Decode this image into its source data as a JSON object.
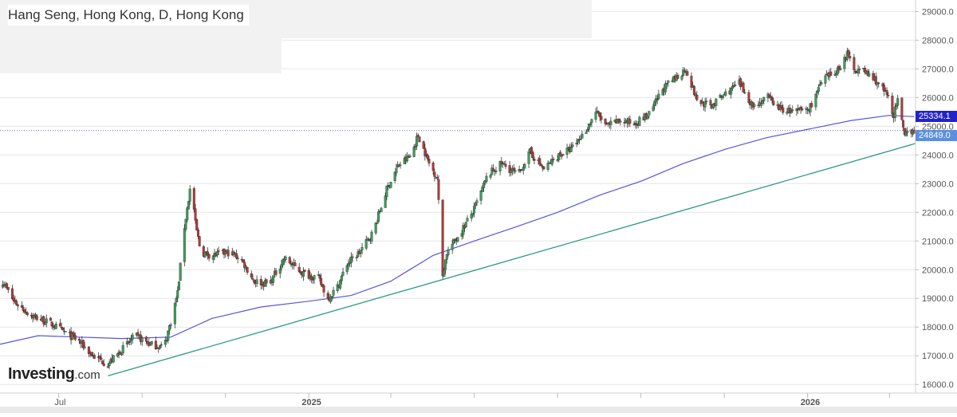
{
  "title": "Hang Seng, Hong Kong, D, Hong Kong",
  "logo": {
    "brand": "Investing",
    "suffix": ".com"
  },
  "price_labels": {
    "ma_value": "25334.1",
    "last_value": "24849.0"
  },
  "colors": {
    "up": "#3aa05a",
    "down": "#b83838",
    "moving_average": "#5555dd",
    "trendline": "#2a9a82",
    "ma_tag": "#2222cc",
    "last_tag": "#5b8fe0",
    "grid": "#e6e6e6"
  },
  "chart_data": {
    "type": "candlestick",
    "title": "Hang Seng, Hong Kong, D, Hong Kong",
    "y_axis": {
      "position": "right",
      "ylim": [
        15700,
        29400
      ],
      "ticks": [
        "29000.0",
        "28000.0",
        "27000.0",
        "26000.0",
        "25000.0",
        "24000.0",
        "23000.0",
        "22000.0",
        "21000.0",
        "20000.0",
        "19000.0",
        "18000.0",
        "17000.0",
        "16000.0"
      ]
    },
    "x_axis": {
      "xlim": [
        "2024-05-18",
        "2026-03-19"
      ],
      "tick_labels": [
        "Jul",
        "2025",
        "2026"
      ],
      "gridlines": [
        "2024-06-30",
        "2024-08-30",
        "2024-10-30",
        "2024-12-30",
        "2025-02-28",
        "2025-04-30",
        "2025-06-30",
        "2025-08-30",
        "2025-10-30",
        "2025-12-30",
        "2026-02-28"
      ]
    },
    "close_path": [
      [
        "2024-05-18",
        19300
      ],
      [
        "2024-05-20",
        19600
      ],
      [
        "2024-05-28",
        18900
      ],
      [
        "2024-06-10",
        18400
      ],
      [
        "2024-06-25",
        18100
      ],
      [
        "2024-07-05",
        17800
      ],
      [
        "2024-07-15",
        17500
      ],
      [
        "2024-07-25",
        17000
      ],
      [
        "2024-08-05",
        16700
      ],
      [
        "2024-08-15",
        17200
      ],
      [
        "2024-08-25",
        17700
      ],
      [
        "2024-09-05",
        17400
      ],
      [
        "2024-09-15",
        17300
      ],
      [
        "2024-09-20",
        18200
      ],
      [
        "2024-09-25",
        19200
      ],
      [
        "2024-09-30",
        21500
      ],
      [
        "2024-10-05",
        23100
      ],
      [
        "2024-10-08",
        21600
      ],
      [
        "2024-10-12",
        20600
      ],
      [
        "2024-10-20",
        20500
      ],
      [
        "2024-11-01",
        20600
      ],
      [
        "2024-11-10",
        20400
      ],
      [
        "2024-11-20",
        19600
      ],
      [
        "2024-12-01",
        19500
      ],
      [
        "2024-12-12",
        20400
      ],
      [
        "2024-12-25",
        19900
      ],
      [
        "2025-01-06",
        19700
      ],
      [
        "2025-01-13",
        19000
      ],
      [
        "2025-01-20",
        19400
      ],
      [
        "2025-01-27",
        20200
      ],
      [
        "2025-02-05",
        20600
      ],
      [
        "2025-02-15",
        21300
      ],
      [
        "2025-02-25",
        22800
      ],
      [
        "2025-03-05",
        23600
      ],
      [
        "2025-03-15",
        24000
      ],
      [
        "2025-03-20",
        24700
      ],
      [
        "2025-03-28",
        23700
      ],
      [
        "2025-04-03",
        23200
      ],
      [
        "2025-04-07",
        19800
      ],
      [
        "2025-04-10",
        20600
      ],
      [
        "2025-04-20",
        21300
      ],
      [
        "2025-04-30",
        22100
      ],
      [
        "2025-05-10",
        23300
      ],
      [
        "2025-05-20",
        23700
      ],
      [
        "2025-06-01",
        23300
      ],
      [
        "2025-06-10",
        24100
      ],
      [
        "2025-06-20",
        23500
      ],
      [
        "2025-07-01",
        24000
      ],
      [
        "2025-07-10",
        24200
      ],
      [
        "2025-07-20",
        24800
      ],
      [
        "2025-07-28",
        25500
      ],
      [
        "2025-08-05",
        25000
      ],
      [
        "2025-08-15",
        25200
      ],
      [
        "2025-08-25",
        25100
      ],
      [
        "2025-09-05",
        25400
      ],
      [
        "2025-09-15",
        26300
      ],
      [
        "2025-09-25",
        26700
      ],
      [
        "2025-10-02",
        27000
      ],
      [
        "2025-10-10",
        25900
      ],
      [
        "2025-10-20",
        25700
      ],
      [
        "2025-10-30",
        26100
      ],
      [
        "2025-11-10",
        26500
      ],
      [
        "2025-11-20",
        25700
      ],
      [
        "2025-12-01",
        26000
      ],
      [
        "2025-12-10",
        25600
      ],
      [
        "2025-12-20",
        25500
      ],
      [
        "2025-12-31",
        25600
      ],
      [
        "2026-01-10",
        26600
      ],
      [
        "2026-01-20",
        26900
      ],
      [
        "2026-01-28",
        27500
      ],
      [
        "2026-02-02",
        27000
      ],
      [
        "2026-02-10",
        26900
      ],
      [
        "2026-02-20",
        26500
      ],
      [
        "2026-02-27",
        26000
      ],
      [
        "2026-03-03",
        25400
      ],
      [
        "2026-03-06",
        25900
      ],
      [
        "2026-03-11",
        24600
      ],
      [
        "2026-03-14",
        24900
      ],
      [
        "2026-03-18",
        24849
      ]
    ],
    "moving_average": {
      "name": "",
      "last_value": 25334.1,
      "points": [
        [
          "2024-05-18",
          17400
        ],
        [
          "2024-06-15",
          17700
        ],
        [
          "2024-07-15",
          17650
        ],
        [
          "2024-08-15",
          17600
        ],
        [
          "2024-09-20",
          17650
        ],
        [
          "2024-10-20",
          18300
        ],
        [
          "2024-11-25",
          18700
        ],
        [
          "2024-12-30",
          18900
        ],
        [
          "2025-01-30",
          19100
        ],
        [
          "2025-02-28",
          19600
        ],
        [
          "2025-03-31",
          20500
        ],
        [
          "2025-04-30",
          21000
        ],
        [
          "2025-05-31",
          21500
        ],
        [
          "2025-06-30",
          22000
        ],
        [
          "2025-07-31",
          22600
        ],
        [
          "2025-08-31",
          23100
        ],
        [
          "2025-09-30",
          23700
        ],
        [
          "2025-10-31",
          24200
        ],
        [
          "2025-11-30",
          24600
        ],
        [
          "2025-12-31",
          24900
        ],
        [
          "2026-01-31",
          25200
        ],
        [
          "2026-02-28",
          25380
        ],
        [
          "2026-03-18",
          25334
        ]
      ]
    },
    "trendline": {
      "points": [
        [
          "2024-08-05",
          16300
        ],
        [
          "2026-03-19",
          24400
        ]
      ]
    },
    "horizontal_line": {
      "value": 24849
    }
  }
}
